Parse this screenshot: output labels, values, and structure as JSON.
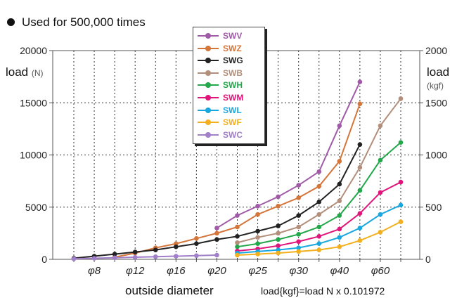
{
  "header": {
    "note": "Used for 500,000 times"
  },
  "axes": {
    "y_left_label": "load",
    "y_left_unit": "(N)",
    "y_right_label": "load",
    "y_right_unit": "(kgf)",
    "x_label": "outside diameter",
    "formula": "load{kgf}=load N x 0.101972"
  },
  "chart_data": {
    "type": "line",
    "x": [
      "",
      "φ8",
      "",
      "φ12",
      "",
      "φ16",
      "",
      "φ20",
      "",
      "φ25",
      "",
      "φ30",
      "",
      "φ40",
      "",
      "φ60",
      ""
    ],
    "ylabel": "load (N)",
    "y2label": "load (kgf)",
    "ylim": [
      0,
      20000
    ],
    "y2lim": [
      0,
      2000
    ],
    "yticks": [
      0,
      5000,
      10000,
      15000,
      20000
    ],
    "y2ticks": [
      0,
      500,
      1000,
      1500,
      2000
    ],
    "grid": true,
    "legend_position": "top-center",
    "series": [
      {
        "name": "SWV",
        "color": "#a05aa8",
        "values": [
          null,
          null,
          null,
          null,
          null,
          null,
          null,
          3000,
          4200,
          5100,
          6000,
          7100,
          8400,
          12800,
          17000,
          null,
          null
        ]
      },
      {
        "name": "SWZ",
        "color": "#d4753a",
        "values": [
          null,
          null,
          200,
          600,
          1100,
          1500,
          2000,
          2500,
          3100,
          4300,
          5100,
          5900,
          7000,
          9400,
          14900,
          null,
          null
        ]
      },
      {
        "name": "SWG",
        "color": "#222222",
        "values": [
          100,
          300,
          500,
          700,
          900,
          1200,
          1500,
          1900,
          2200,
          2700,
          3200,
          4200,
          5500,
          7200,
          11000,
          null,
          null
        ]
      },
      {
        "name": "SWB",
        "color": "#b38e7a",
        "values": [
          null,
          null,
          null,
          null,
          null,
          null,
          null,
          null,
          1600,
          2100,
          2500,
          3100,
          4300,
          5600,
          8800,
          12800,
          15400
        ]
      },
      {
        "name": "SWH",
        "color": "#22a84a",
        "values": [
          null,
          null,
          null,
          null,
          null,
          null,
          null,
          null,
          1200,
          1500,
          1900,
          2400,
          3100,
          4200,
          6600,
          9500,
          11200
        ]
      },
      {
        "name": "SWM",
        "color": "#e0147a",
        "values": [
          null,
          null,
          null,
          null,
          null,
          null,
          null,
          null,
          800,
          1000,
          1300,
          1700,
          2200,
          2900,
          4400,
          6400,
          7400
        ]
      },
      {
        "name": "SWL",
        "color": "#1aa7e0",
        "values": [
          null,
          null,
          null,
          null,
          null,
          null,
          null,
          null,
          600,
          750,
          900,
          1100,
          1500,
          2100,
          3000,
          4300,
          5200
        ]
      },
      {
        "name": "SWF",
        "color": "#f2b01e",
        "values": [
          null,
          null,
          null,
          null,
          null,
          null,
          null,
          null,
          400,
          500,
          600,
          750,
          900,
          1200,
          1800,
          2600,
          3600
        ]
      },
      {
        "name": "SWC",
        "color": "#a07ec8",
        "values": [
          50,
          100,
          150,
          200,
          250,
          300,
          350,
          400,
          null,
          null,
          null,
          null,
          null,
          null,
          null,
          null,
          null
        ]
      }
    ]
  }
}
